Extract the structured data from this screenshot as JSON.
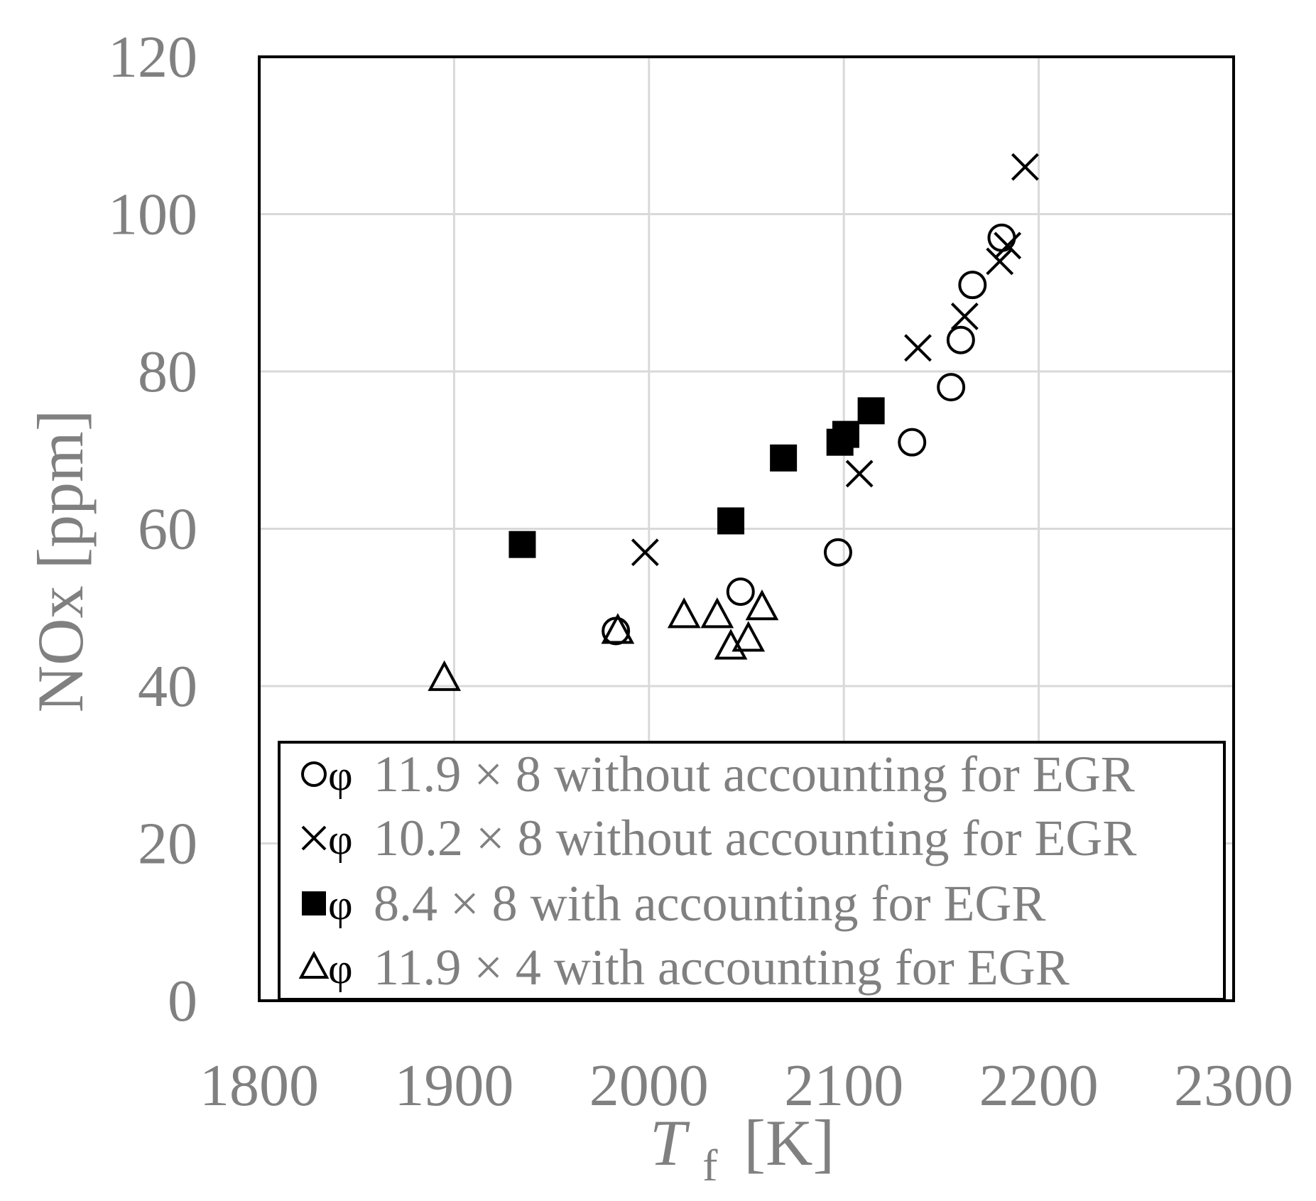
{
  "chart_data": {
    "type": "scatter",
    "title": "",
    "xlabel_main": "T",
    "xlabel_sub": "f",
    "xlabel_unit": "[K]",
    "ylabel": "NOx [ppm]",
    "xlim": [
      1800,
      2300
    ],
    "ylim": [
      0,
      120
    ],
    "xticks": [
      "1800",
      "1900",
      "2000",
      "2100",
      "2200",
      "2300"
    ],
    "yticks": [
      "0",
      "20",
      "40",
      "60",
      "80",
      "100",
      "120"
    ],
    "grid": true,
    "legend_position": "bottom",
    "series": [
      {
        "name": "11.9 × 8 without accounting for EGR",
        "marker": "circle",
        "points": [
          [
            1983,
            47
          ],
          [
            2047,
            52
          ],
          [
            2097,
            57
          ],
          [
            2135,
            71
          ],
          [
            2155,
            78
          ],
          [
            2160,
            84
          ],
          [
            2166,
            91
          ],
          [
            2181,
            97
          ]
        ]
      },
      {
        "name": "10.2 × 8 without accounting for EGR",
        "marker": "x",
        "points": [
          [
            1998,
            57
          ],
          [
            2108,
            67
          ],
          [
            2138,
            83
          ],
          [
            2162,
            87
          ],
          [
            2180,
            94
          ],
          [
            2184,
            96
          ],
          [
            2193,
            106
          ]
        ]
      },
      {
        "name": "8.4 × 8 with accounting for EGR",
        "marker": "square",
        "points": [
          [
            1935,
            58
          ],
          [
            2042,
            61
          ],
          [
            2069,
            69
          ],
          [
            2098,
            71
          ],
          [
            2101,
            72
          ],
          [
            2114,
            75
          ]
        ]
      },
      {
        "name": "11.9 × 4 with accounting for EGR",
        "marker": "triangle",
        "points": [
          [
            1895,
            41
          ],
          [
            1984,
            47
          ],
          [
            2018,
            49
          ],
          [
            2035,
            49
          ],
          [
            2042,
            45
          ],
          [
            2051,
            46
          ],
          [
            2058,
            50
          ]
        ]
      }
    ]
  },
  "legend": {
    "phi_symbol": "φ"
  },
  "colors": {
    "marker": "#000000",
    "text": "#808080",
    "grid": "#d9d9d9",
    "frame": "#000000"
  }
}
